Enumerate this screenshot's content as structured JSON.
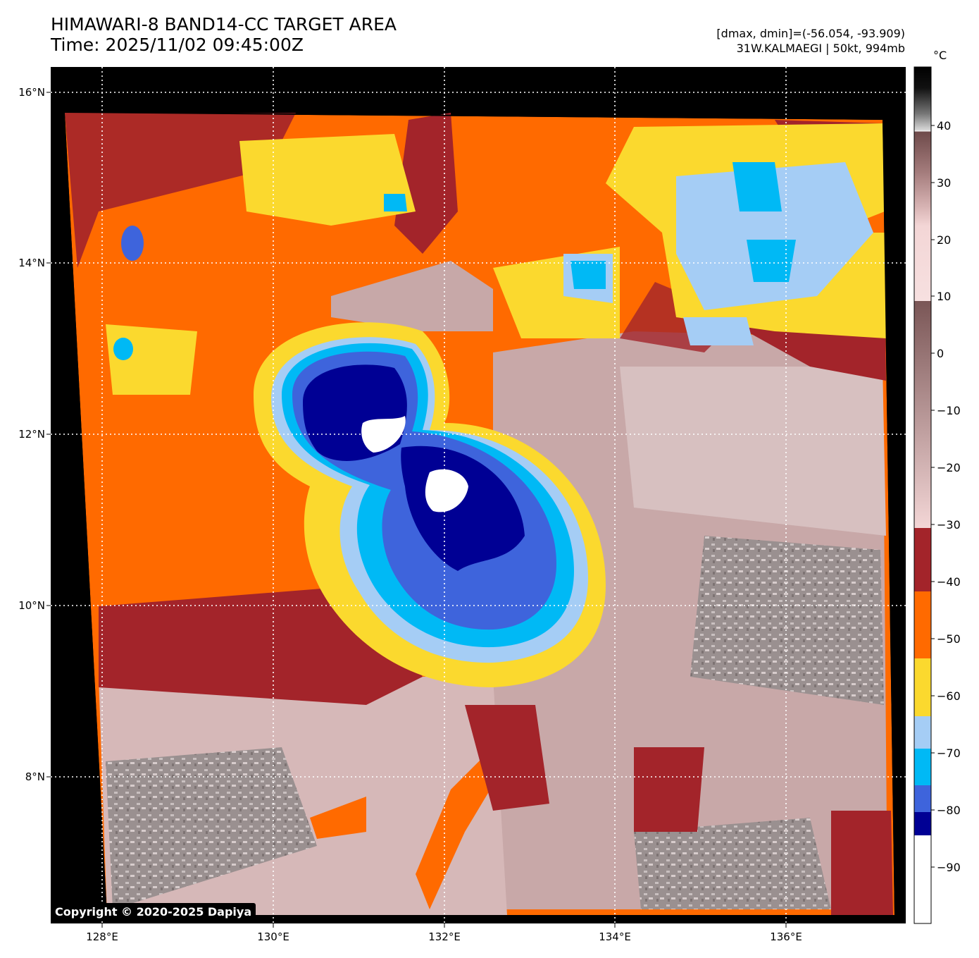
{
  "header": {
    "title_line1": "HIMAWARI-8 BAND14-CC TARGET AREA",
    "title_line2": "Time: 2025/11/02 09:45:00Z",
    "info_line1": "[dmax, dmin]=(-56.054, -93.909)",
    "info_line2": "31W.KALMAEGI | 50kt, 994mb"
  },
  "map": {
    "lat_labels": [
      "16°N",
      "14°N",
      "12°N",
      "10°N",
      "8°N"
    ],
    "lon_labels": [
      "128°E",
      "130°E",
      "132°E",
      "134°E",
      "136°E"
    ]
  },
  "colorbar": {
    "unit": "°C",
    "ticks": [
      "40",
      "30",
      "20",
      "10",
      "0",
      "−10",
      "−20",
      "−30",
      "−40",
      "−50",
      "−60",
      "−70",
      "−80",
      "−90"
    ],
    "colors": {
      "warm_gray_top": "#000000",
      "gray_mid": "#bbbbbb",
      "white_10": "#ffffff",
      "brown_0": "#7a5656",
      "pink_m30": "#f3d6d6",
      "darkred": "#a3242a",
      "orange": "#ff6a00",
      "yellow": "#fbd92e",
      "lightblue": "#a5cdf5",
      "cyan": "#00b9f5",
      "royalblue": "#3e64dc",
      "navy": "#000094",
      "white_cold": "#ffffff"
    }
  },
  "copyright": "Copyright © 2020-2025 Dapiya"
}
